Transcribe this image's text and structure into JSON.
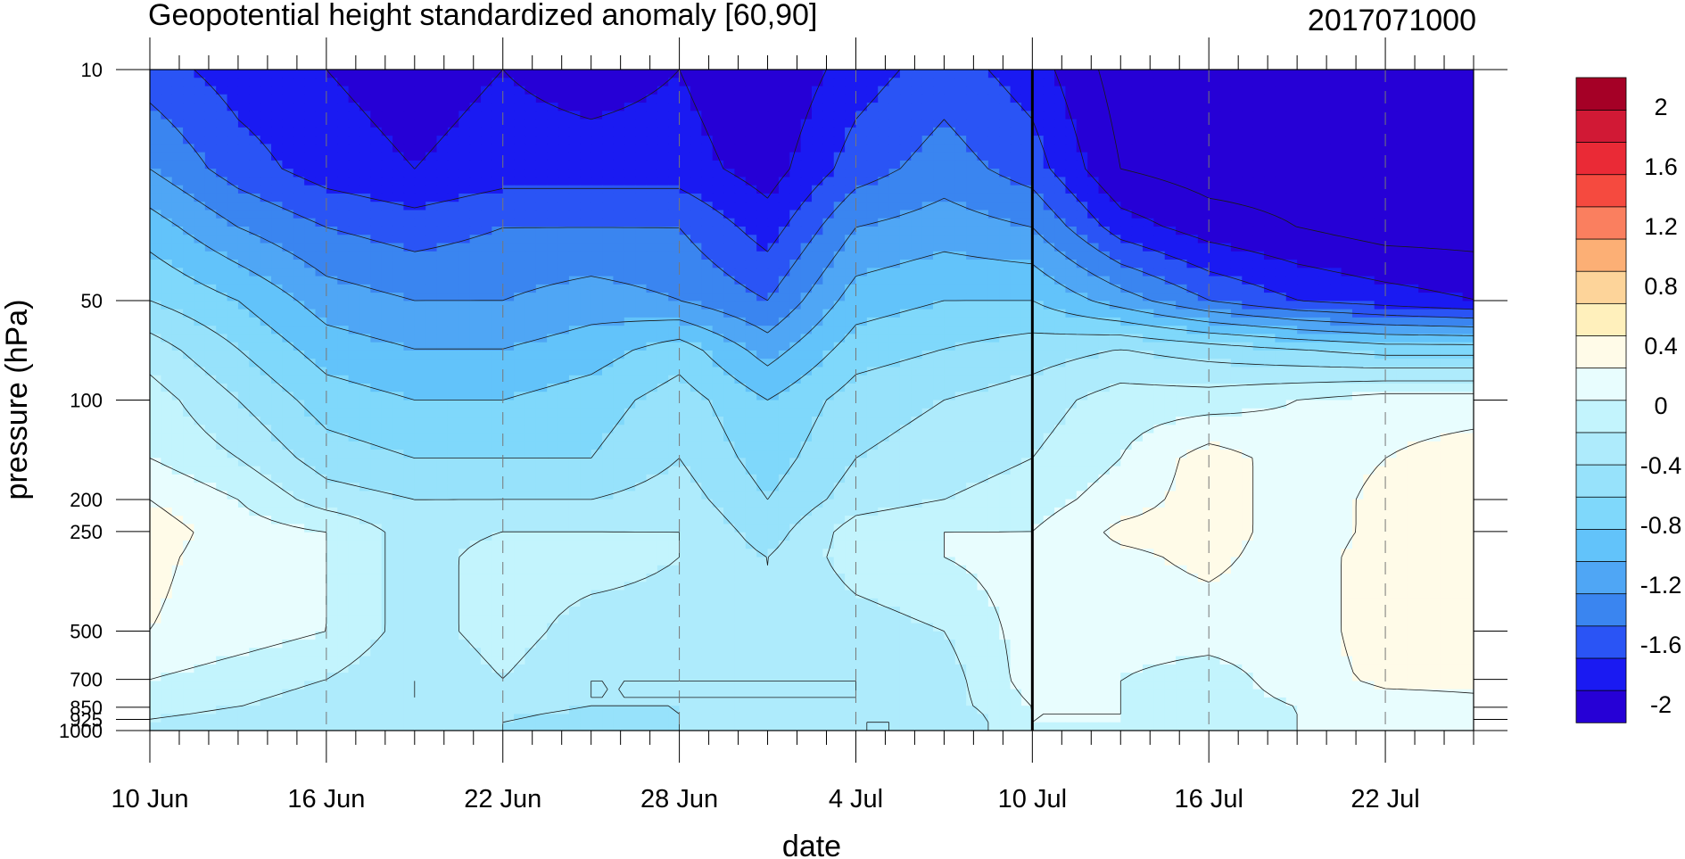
{
  "chart_data": {
    "type": "heatmap",
    "subtype": "filled-contour",
    "title": "Geopotential height standardized anomaly [60,90]",
    "run_label": "2017071000",
    "xlabel": "date",
    "ylabel": "pressure (hPa)",
    "x_tick_labels": [
      "10 Jun",
      "16 Jun",
      "22 Jun",
      "28 Jun",
      "4 Jul",
      "10 Jul",
      "16 Jul",
      "22 Jul"
    ],
    "x_tick_days": [
      0,
      6,
      12,
      18,
      24,
      30,
      36,
      42
    ],
    "x_range_days": [
      0,
      45
    ],
    "y_tick_labels": [
      "10",
      "50",
      "100",
      "200",
      "250",
      "500",
      "700",
      "850",
      "925",
      "1000"
    ],
    "y_tick_values": [
      10,
      50,
      100,
      200,
      250,
      500,
      700,
      850,
      925,
      1000
    ],
    "y_range": [
      10,
      1000
    ],
    "y_scale": "log, inverted",
    "reference_line_day": 30,
    "colorbar_labels": [
      "2",
      "1.6",
      "1.2",
      "0.8",
      "0.4",
      "0",
      "-0.4",
      "-0.8",
      "-1.2",
      "-1.6",
      "-2"
    ],
    "colorbar_levels": [
      -2.2,
      -2.0,
      -1.8,
      -1.6,
      -1.4,
      -1.2,
      -1.0,
      -0.8,
      -0.6,
      -0.4,
      -0.2,
      0,
      0.2,
      0.4,
      0.6,
      0.8,
      1.0,
      1.2,
      1.4,
      1.6,
      1.8,
      2.0,
      2.2
    ],
    "colorbar_colors_bottom_to_top": [
      "#2600d6",
      "#1a1af2",
      "#2a54f5",
      "#3a85f0",
      "#4fa6f5",
      "#62c3fa",
      "#7fd8fb",
      "#97e2fb",
      "#aeebfc",
      "#c3f4fd",
      "#e8fdfe",
      "#fffbe8",
      "#fff0bc",
      "#fdd49a",
      "#fcaf75",
      "#fa7f5f",
      "#f54a3f",
      "#ea2a36",
      "#d11935",
      "#a50026"
    ],
    "field": {
      "x_days": [
        0,
        3,
        6,
        9,
        12,
        15,
        18,
        21,
        24,
        27,
        30,
        33,
        36,
        39,
        42,
        45
      ],
      "pressure_levels": [
        10,
        20,
        30,
        50,
        70,
        100,
        150,
        200,
        250,
        300,
        500,
        700,
        850,
        925,
        1000
      ],
      "values": [
        [
          -1.7,
          -1.9,
          -2.0,
          -2.1,
          -2.0,
          -2.1,
          -2.0,
          -2.2,
          -1.9,
          -1.7,
          -1.9,
          -2.3,
          -2.3,
          -2.3,
          -2.3,
          -2.3
        ],
        [
          -1.4,
          -1.7,
          -1.9,
          -2.0,
          -1.9,
          -1.9,
          -1.9,
          -2.1,
          -1.7,
          -1.5,
          -1.7,
          -2.2,
          -2.3,
          -2.3,
          -2.3,
          -2.3
        ],
        [
          -1.1,
          -1.4,
          -1.6,
          -1.7,
          -1.6,
          -1.6,
          -1.6,
          -1.9,
          -1.4,
          -1.3,
          -1.4,
          -1.9,
          -2.1,
          -2.2,
          -2.3,
          -2.3
        ],
        [
          -0.8,
          -1.0,
          -1.3,
          -1.4,
          -1.4,
          -1.3,
          -1.4,
          -1.6,
          -1.1,
          -1.0,
          -1.0,
          -1.3,
          -1.6,
          -1.8,
          -1.9,
          -2.0
        ],
        [
          -0.5,
          -0.8,
          -1.1,
          -1.2,
          -1.2,
          -1.1,
          -0.9,
          -1.3,
          -0.9,
          -0.8,
          -0.7,
          -0.6,
          -0.7,
          -0.8,
          -0.9,
          -0.9
        ],
        [
          -0.3,
          -0.6,
          -0.9,
          -1.0,
          -1.0,
          -0.9,
          -0.7,
          -1.0,
          -0.7,
          -0.6,
          -0.5,
          -0.3,
          -0.3,
          -0.2,
          -0.1,
          -0.1
        ],
        [
          -0.2,
          -0.4,
          -0.7,
          -0.8,
          -0.8,
          -0.8,
          -0.6,
          -0.9,
          -0.6,
          -0.5,
          -0.4,
          -0.2,
          0.1,
          -0.1,
          0.0,
          0.1
        ],
        [
          0.0,
          -0.2,
          -0.5,
          -0.6,
          -0.6,
          -0.6,
          -0.5,
          -0.8,
          -0.5,
          -0.4,
          -0.3,
          -0.1,
          0.1,
          -0.1,
          0.05,
          0.1
        ],
        [
          0.1,
          -0.1,
          -0.2,
          -0.5,
          -0.4,
          -0.4,
          -0.4,
          -0.7,
          -0.3,
          -0.2,
          -0.2,
          0.05,
          0.1,
          -0.1,
          0.05,
          0.1
        ],
        [
          0.05,
          -0.1,
          -0.2,
          -0.5,
          -0.3,
          -0.3,
          -0.4,
          -0.6,
          -0.3,
          -0.2,
          -0.1,
          -0.05,
          0.05,
          -0.1,
          0.1,
          0.1
        ],
        [
          0.0,
          -0.1,
          -0.2,
          -0.5,
          -0.3,
          -0.5,
          -0.5,
          -0.6,
          -0.5,
          -0.4,
          -0.1,
          -0.1,
          -0.1,
          -0.1,
          0.1,
          0.1
        ],
        [
          -0.2,
          -0.3,
          -0.4,
          -0.6,
          -0.4,
          -0.6,
          -0.6,
          -0.6,
          -0.6,
          -0.5,
          -0.1,
          -0.2,
          -0.3,
          -0.1,
          0.05,
          0.05
        ],
        [
          -0.3,
          -0.4,
          -0.5,
          -0.6,
          -0.5,
          -0.6,
          -0.6,
          -0.6,
          -0.6,
          -0.5,
          -0.2,
          -0.2,
          -0.3,
          -0.2,
          -0.1,
          -0.05
        ],
        [
          -0.4,
          -0.5,
          -0.6,
          -0.6,
          -0.6,
          -0.7,
          -0.6,
          -0.6,
          -0.6,
          -0.6,
          -0.2,
          -0.2,
          -0.4,
          -0.2,
          -0.1,
          -0.05
        ],
        [
          -0.5,
          -0.6,
          -0.6,
          -0.6,
          -0.6,
          -0.7,
          -0.6,
          -0.6,
          -0.6,
          -0.6,
          -0.2,
          -0.3,
          -0.4,
          -0.2,
          -0.1,
          -0.05
        ]
      ]
    }
  }
}
